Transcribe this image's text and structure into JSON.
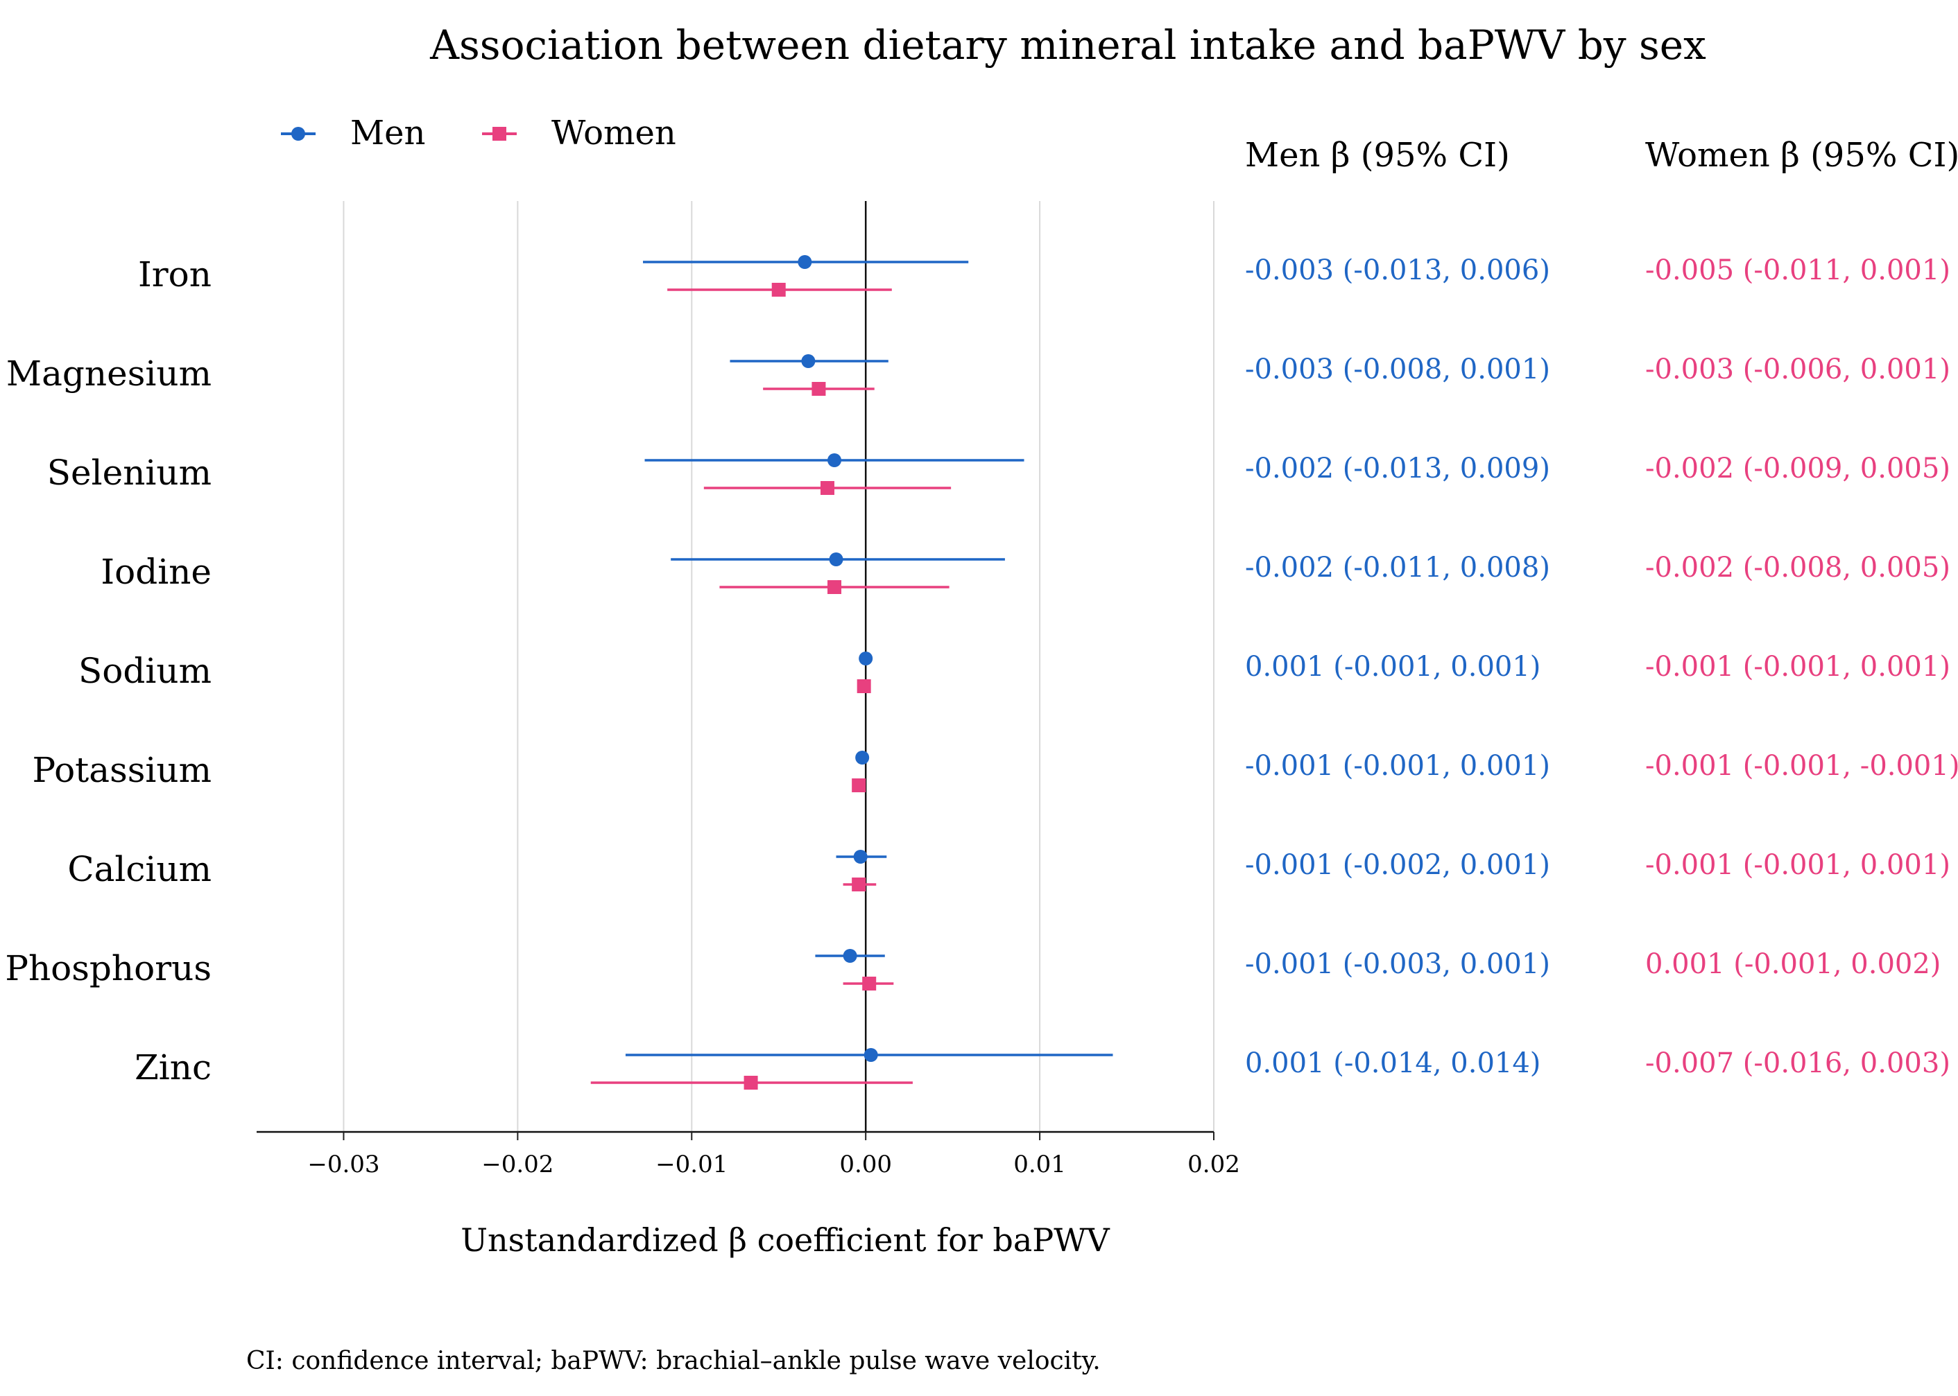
{
  "chart_data": {
    "type": "forest",
    "title": "Association between dietary mineral intake and baPWV by sex",
    "xlabel": "Unstandardized β coefficient for baPWV",
    "xlim": [
      -0.035,
      0.02
    ],
    "xticks": [
      -0.03,
      -0.02,
      -0.01,
      0.0,
      0.01,
      0.02
    ],
    "xtick_labels": [
      "−0.03",
      "−0.02",
      "−0.01",
      "0.00",
      "0.01",
      "0.02"
    ],
    "reference_line": 0,
    "grid": "vertical",
    "legend_position": "top-left",
    "categories": [
      "Iron",
      "Magnesium",
      "Selenium",
      "Iodine",
      "Sodium",
      "Potassium",
      "Calcium",
      "Phosphorus",
      "Zinc"
    ],
    "series": [
      {
        "name": "Men",
        "color": "#1f66c5",
        "marker": "circle",
        "points": [
          {
            "est": -0.0035,
            "lo": -0.0128,
            "hi": 0.0059
          },
          {
            "est": -0.0033,
            "lo": -0.0078,
            "hi": 0.0013
          },
          {
            "est": -0.0018,
            "lo": -0.0127,
            "hi": 0.0091
          },
          {
            "est": -0.0017,
            "lo": -0.0112,
            "hi": 0.008
          },
          {
            "est": 0.0,
            "lo": 0.0,
            "hi": 0.0
          },
          {
            "est": -0.0002,
            "lo": -0.0002,
            "hi": -0.0002
          },
          {
            "est": -0.0003,
            "lo": -0.0017,
            "hi": 0.0012
          },
          {
            "est": -0.0009,
            "lo": -0.0029,
            "hi": 0.0011
          },
          {
            "est": 0.0003,
            "lo": -0.0138,
            "hi": 0.0142
          }
        ]
      },
      {
        "name": "Women",
        "color": "#e8407f",
        "marker": "square",
        "points": [
          {
            "est": -0.005,
            "lo": -0.0114,
            "hi": 0.0015
          },
          {
            "est": -0.0027,
            "lo": -0.0059,
            "hi": 0.0005
          },
          {
            "est": -0.0022,
            "lo": -0.0093,
            "hi": 0.0049
          },
          {
            "est": -0.0018,
            "lo": -0.0084,
            "hi": 0.0048
          },
          {
            "est": -0.0001,
            "lo": -0.0001,
            "hi": -0.0001
          },
          {
            "est": -0.0004,
            "lo": -0.0004,
            "hi": -0.0004
          },
          {
            "est": -0.0004,
            "lo": -0.0013,
            "hi": 0.0006
          },
          {
            "est": 0.0002,
            "lo": -0.0013,
            "hi": 0.0016
          },
          {
            "est": -0.0066,
            "lo": -0.0158,
            "hi": 0.0027
          }
        ]
      }
    ],
    "table": {
      "men_header": "Men β (95% CI)",
      "women_header": "Women β (95% CI)",
      "men": [
        "-0.003 (-0.013, 0.006)",
        "-0.003 (-0.008, 0.001)",
        "-0.002 (-0.013, 0.009)",
        "-0.002 (-0.011, 0.008)",
        "0.001 (-0.001, 0.001)",
        "-0.001 (-0.001, 0.001)",
        "-0.001 (-0.002, 0.001)",
        "-0.001 (-0.003, 0.001)",
        "0.001 (-0.014, 0.014)"
      ],
      "women": [
        "-0.005 (-0.011, 0.001)",
        "-0.003 (-0.006, 0.001)",
        "-0.002 (-0.009, 0.005)",
        "-0.002 (-0.008, 0.005)",
        "-0.001 (-0.001, 0.001)",
        "-0.001 (-0.001, -0.001)",
        "-0.001 (-0.001, 0.001)",
        "0.001 (-0.001, 0.002)",
        "-0.007 (-0.016, 0.003)"
      ]
    },
    "footnote": "CI: confidence interval; baPWV: brachial–ankle pulse wave velocity."
  }
}
